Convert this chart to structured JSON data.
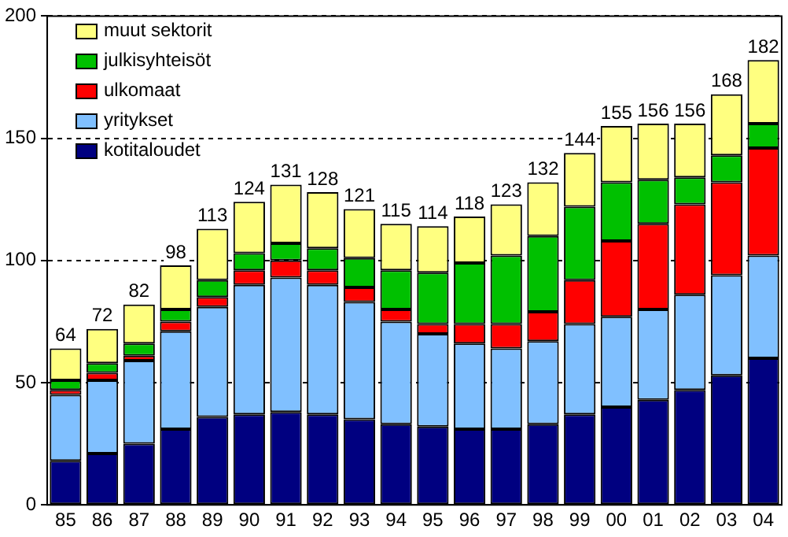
{
  "chart_data": {
    "type": "bar",
    "stacked": true,
    "categories": [
      "85",
      "86",
      "87",
      "88",
      "89",
      "90",
      "91",
      "92",
      "93",
      "94",
      "95",
      "96",
      "97",
      "98",
      "99",
      "00",
      "01",
      "02",
      "03",
      "04"
    ],
    "series": [
      {
        "name": "kotitaloudet",
        "color": "#000080",
        "values": [
          18,
          21,
          25,
          31,
          36,
          37,
          38,
          37,
          35,
          33,
          32,
          31,
          31,
          33,
          37,
          40,
          43,
          47,
          53,
          60
        ]
      },
      {
        "name": "yritykset",
        "color": "#80c0ff",
        "values": [
          27,
          30,
          34,
          40,
          45,
          53,
          55,
          53,
          48,
          42,
          38,
          35,
          33,
          34,
          37,
          37,
          37,
          39,
          41,
          42
        ]
      },
      {
        "name": "ulkomaat",
        "color": "#ff0000",
        "values": [
          2,
          3,
          2,
          4,
          4,
          6,
          7,
          6,
          6,
          5,
          4,
          8,
          10,
          12,
          18,
          31,
          35,
          37,
          38,
          44
        ]
      },
      {
        "name": "julkisyhteisöt",
        "color": "#00c000",
        "values": [
          4,
          4,
          5,
          5,
          7,
          7,
          7,
          9,
          12,
          16,
          21,
          25,
          28,
          31,
          30,
          24,
          18,
          11,
          11,
          10
        ]
      },
      {
        "name": "muut sektorit",
        "color": "#ffff80",
        "values": [
          13,
          14,
          16,
          18,
          21,
          21,
          24,
          23,
          20,
          19,
          19,
          19,
          21,
          22,
          22,
          23,
          23,
          22,
          25,
          26
        ]
      }
    ],
    "totals": [
      "64",
      "72",
      "82",
      "98",
      "113",
      "124",
      "131",
      "128",
      "121",
      "115",
      "114",
      "118",
      "123",
      "132",
      "144",
      "155",
      "156",
      "156",
      "168",
      "182"
    ],
    "ylim": [
      0,
      200
    ],
    "yticks": [
      0,
      50,
      100,
      150,
      200
    ],
    "grid": "y",
    "legend": "top left"
  }
}
